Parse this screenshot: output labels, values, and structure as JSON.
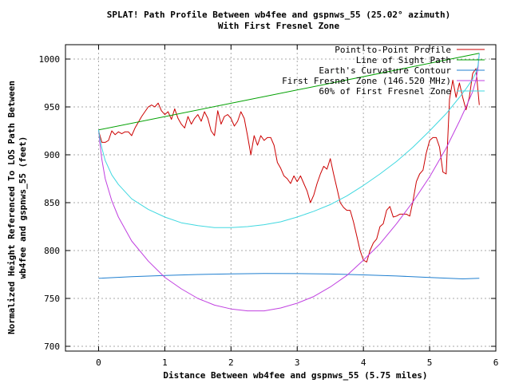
{
  "chart_data": {
    "type": "line",
    "title_line1": "SPLAT! Path Profile Between wb4fee and gspnws_55 (25.02° azimuth)",
    "title_line2": "With First Fresnel Zone",
    "xlabel": "Distance Between wb4fee and gspnws_55 (5.75 miles)",
    "ylabel_line1": "Normalized Height Referenced To LOS Path Between",
    "ylabel_line2": "wb4fee and gspnws_55 (feet)",
    "xlim": [
      -0.5,
      6
    ],
    "ylim": [
      695,
      1015
    ],
    "x_ticks": [
      0,
      1,
      2,
      3,
      4,
      5,
      6
    ],
    "y_ticks": [
      700,
      750,
      800,
      850,
      900,
      950,
      1000
    ],
    "grid": true,
    "legend_position": "top-right",
    "colors": {
      "profile": "#cc0000",
      "los": "#00a000",
      "earth": "#1f7fd0",
      "fresnel": "#c040e0",
      "fresnel60": "#40d8e0",
      "grid": "#aaaaaa"
    },
    "series": [
      {
        "name": "Point-to-Point Profile",
        "key": "profile",
        "x": [
          0,
          0.05,
          0.1,
          0.15,
          0.2,
          0.25,
          0.3,
          0.35,
          0.4,
          0.45,
          0.5,
          0.55,
          0.6,
          0.65,
          0.7,
          0.75,
          0.8,
          0.85,
          0.9,
          0.95,
          1.0,
          1.05,
          1.1,
          1.15,
          1.2,
          1.25,
          1.3,
          1.35,
          1.4,
          1.45,
          1.5,
          1.55,
          1.6,
          1.65,
          1.7,
          1.75,
          1.8,
          1.85,
          1.9,
          1.95,
          2.0,
          2.05,
          2.1,
          2.15,
          2.2,
          2.25,
          2.3,
          2.35,
          2.4,
          2.45,
          2.5,
          2.55,
          2.6,
          2.65,
          2.7,
          2.75,
          2.8,
          2.85,
          2.9,
          2.95,
          3.0,
          3.05,
          3.1,
          3.15,
          3.2,
          3.25,
          3.3,
          3.35,
          3.4,
          3.45,
          3.5,
          3.55,
          3.6,
          3.65,
          3.7,
          3.75,
          3.8,
          3.85,
          3.9,
          3.95,
          4.0,
          4.05,
          4.1,
          4.15,
          4.2,
          4.25,
          4.3,
          4.35,
          4.4,
          4.45,
          4.5,
          4.55,
          4.6,
          4.65,
          4.7,
          4.75,
          4.8,
          4.85,
          4.9,
          4.95,
          5.0,
          5.05,
          5.1,
          5.15,
          5.2,
          5.25,
          5.3,
          5.35,
          5.4,
          5.45,
          5.5,
          5.55,
          5.6,
          5.65,
          5.7,
          5.75
        ],
        "y": [
          925,
          913,
          913,
          915,
          925,
          921,
          924,
          922,
          924,
          924,
          920,
          928,
          934,
          940,
          945,
          950,
          952,
          950,
          954,
          946,
          942,
          945,
          937,
          948,
          938,
          932,
          928,
          940,
          932,
          938,
          942,
          935,
          945,
          938,
          925,
          920,
          946,
          932,
          940,
          942,
          938,
          930,
          935,
          945,
          938,
          920,
          900,
          920,
          910,
          920,
          915,
          918,
          918,
          910,
          892,
          886,
          878,
          875,
          870,
          878,
          872,
          878,
          870,
          862,
          850,
          858,
          870,
          880,
          888,
          885,
          896,
          880,
          865,
          850,
          845,
          842,
          842,
          830,
          815,
          800,
          790,
          788,
          800,
          808,
          812,
          825,
          828,
          842,
          846,
          835,
          836,
          838,
          838,
          838,
          836,
          852,
          872,
          880,
          884,
          902,
          915,
          918,
          918,
          908,
          882,
          880,
          958,
          978,
          960,
          975,
          960,
          947,
          960,
          985,
          990,
          952
        ]
      },
      {
        "name": "Line of Sight Path",
        "key": "los",
        "x": [
          0,
          5.75
        ],
        "y": [
          926,
          1006
        ]
      },
      {
        "name": "Earth's Curvature Contour",
        "key": "earth",
        "x": [
          0,
          0.5,
          1.0,
          1.5,
          2.0,
          2.5,
          3.0,
          3.5,
          4.0,
          4.5,
          5.0,
          5.5,
          5.75
        ],
        "y": [
          771,
          772.7,
          774,
          775,
          775.7,
          776,
          775.9,
          775.5,
          774.6,
          773.4,
          771.9,
          770.4,
          771
        ]
      },
      {
        "name": "First Fresnel Zone (146.520 MHz)",
        "key": "fresnel",
        "x": [
          0,
          0.02,
          0.05,
          0.1,
          0.2,
          0.3,
          0.5,
          0.75,
          1.0,
          1.25,
          1.5,
          1.75,
          2.0,
          2.25,
          2.5,
          2.75,
          3.0,
          3.25,
          3.5,
          3.75,
          4.0,
          4.25,
          4.5,
          4.75,
          5.0,
          5.25,
          5.45,
          5.55,
          5.65,
          5.7,
          5.73,
          5.75
        ],
        "y": [
          926,
          912,
          895,
          875,
          852,
          835,
          810,
          789,
          772,
          760,
          750,
          743,
          739,
          737,
          737,
          740,
          745,
          752,
          762,
          774,
          790,
          807,
          828,
          851,
          877,
          907,
          935,
          950,
          966,
          978,
          990,
          1006
        ]
      },
      {
        "name": "60% of First Fresnel Zone",
        "key": "fresnel60",
        "x": [
          0,
          0.02,
          0.05,
          0.1,
          0.2,
          0.3,
          0.5,
          0.75,
          1.0,
          1.25,
          1.5,
          1.75,
          2.0,
          2.25,
          2.5,
          2.75,
          3.0,
          3.25,
          3.5,
          3.75,
          4.0,
          4.25,
          4.5,
          4.75,
          5.0,
          5.25,
          5.45,
          5.55,
          5.65,
          5.7,
          5.73,
          5.75
        ],
        "y": [
          926,
          917,
          907,
          894,
          879,
          869,
          854,
          843,
          835,
          829,
          826,
          824,
          824,
          825,
          827,
          830,
          835,
          841,
          848,
          857,
          868,
          880,
          893,
          908,
          925,
          943,
          960,
          969,
          979,
          986,
          993,
          1006
        ]
      }
    ]
  }
}
